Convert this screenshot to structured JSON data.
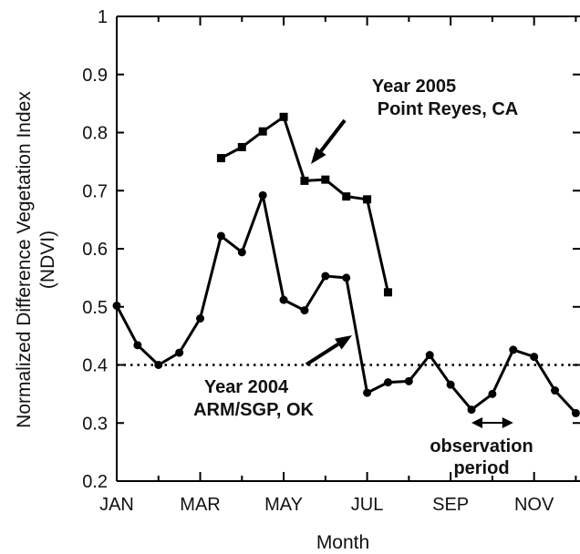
{
  "chart_data": {
    "type": "line",
    "title": "",
    "xlabel": "Month",
    "ylabel": "Normalized Difference Vegetation Index",
    "ylabel_sub": "(NDVI)",
    "x_tick_labels": [
      "JAN",
      "MAR",
      "MAY",
      "JUL",
      "SEP",
      "NOV"
    ],
    "x_tick_months": [
      1,
      3,
      5,
      7,
      9,
      11
    ],
    "xlim": [
      1,
      12.1
    ],
    "y_ticks": [
      0.2,
      0.3,
      0.4,
      0.5,
      0.6,
      0.7,
      0.8,
      0.9,
      1
    ],
    "y_tick_labels": [
      "0.2",
      "0.3",
      "0.4",
      "0.5",
      "0.6",
      "0.7",
      "0.8",
      "0.9",
      "1"
    ],
    "ylim": [
      0.2,
      1.0
    ],
    "grid": false,
    "series": [
      {
        "name": "Year 2005 Point Reyes, CA",
        "marker": "square",
        "x": [
          3.5,
          4.0,
          4.5,
          5.0,
          5.5,
          6.0,
          6.5,
          7.0,
          7.5
        ],
        "y": [
          0.756,
          0.775,
          0.802,
          0.827,
          0.717,
          0.719,
          0.69,
          0.685,
          0.525
        ]
      },
      {
        "name": "Year 2004 ARM/SGP, OK",
        "marker": "circle",
        "x": [
          1.0,
          1.5,
          2.0,
          2.5,
          3.0,
          3.5,
          4.0,
          4.5,
          5.0,
          5.5,
          6.0,
          6.5,
          7.0,
          7.5,
          8.0,
          8.5,
          9.0,
          9.5,
          10.0,
          10.5,
          11.0,
          11.5,
          12.0
        ],
        "y": [
          0.502,
          0.434,
          0.4,
          0.421,
          0.48,
          0.622,
          0.594,
          0.692,
          0.512,
          0.494,
          0.553,
          0.55,
          0.352,
          0.37,
          0.372,
          0.417,
          0.366,
          0.323,
          0.35,
          0.426,
          0.414,
          0.356,
          0.317
        ]
      }
    ],
    "reference_line": {
      "y": 0.4,
      "style": "dotted"
    },
    "observation_period": {
      "x": [
        9.5,
        10.5
      ],
      "label_line1": "observation",
      "label_line2": "period"
    },
    "annotations": {
      "y2005_line1": "Year 2005",
      "y2005_line2": "Point Reyes, CA",
      "y2004_line1": "Year 2004",
      "y2004_line2": "ARM/SGP, OK"
    }
  }
}
